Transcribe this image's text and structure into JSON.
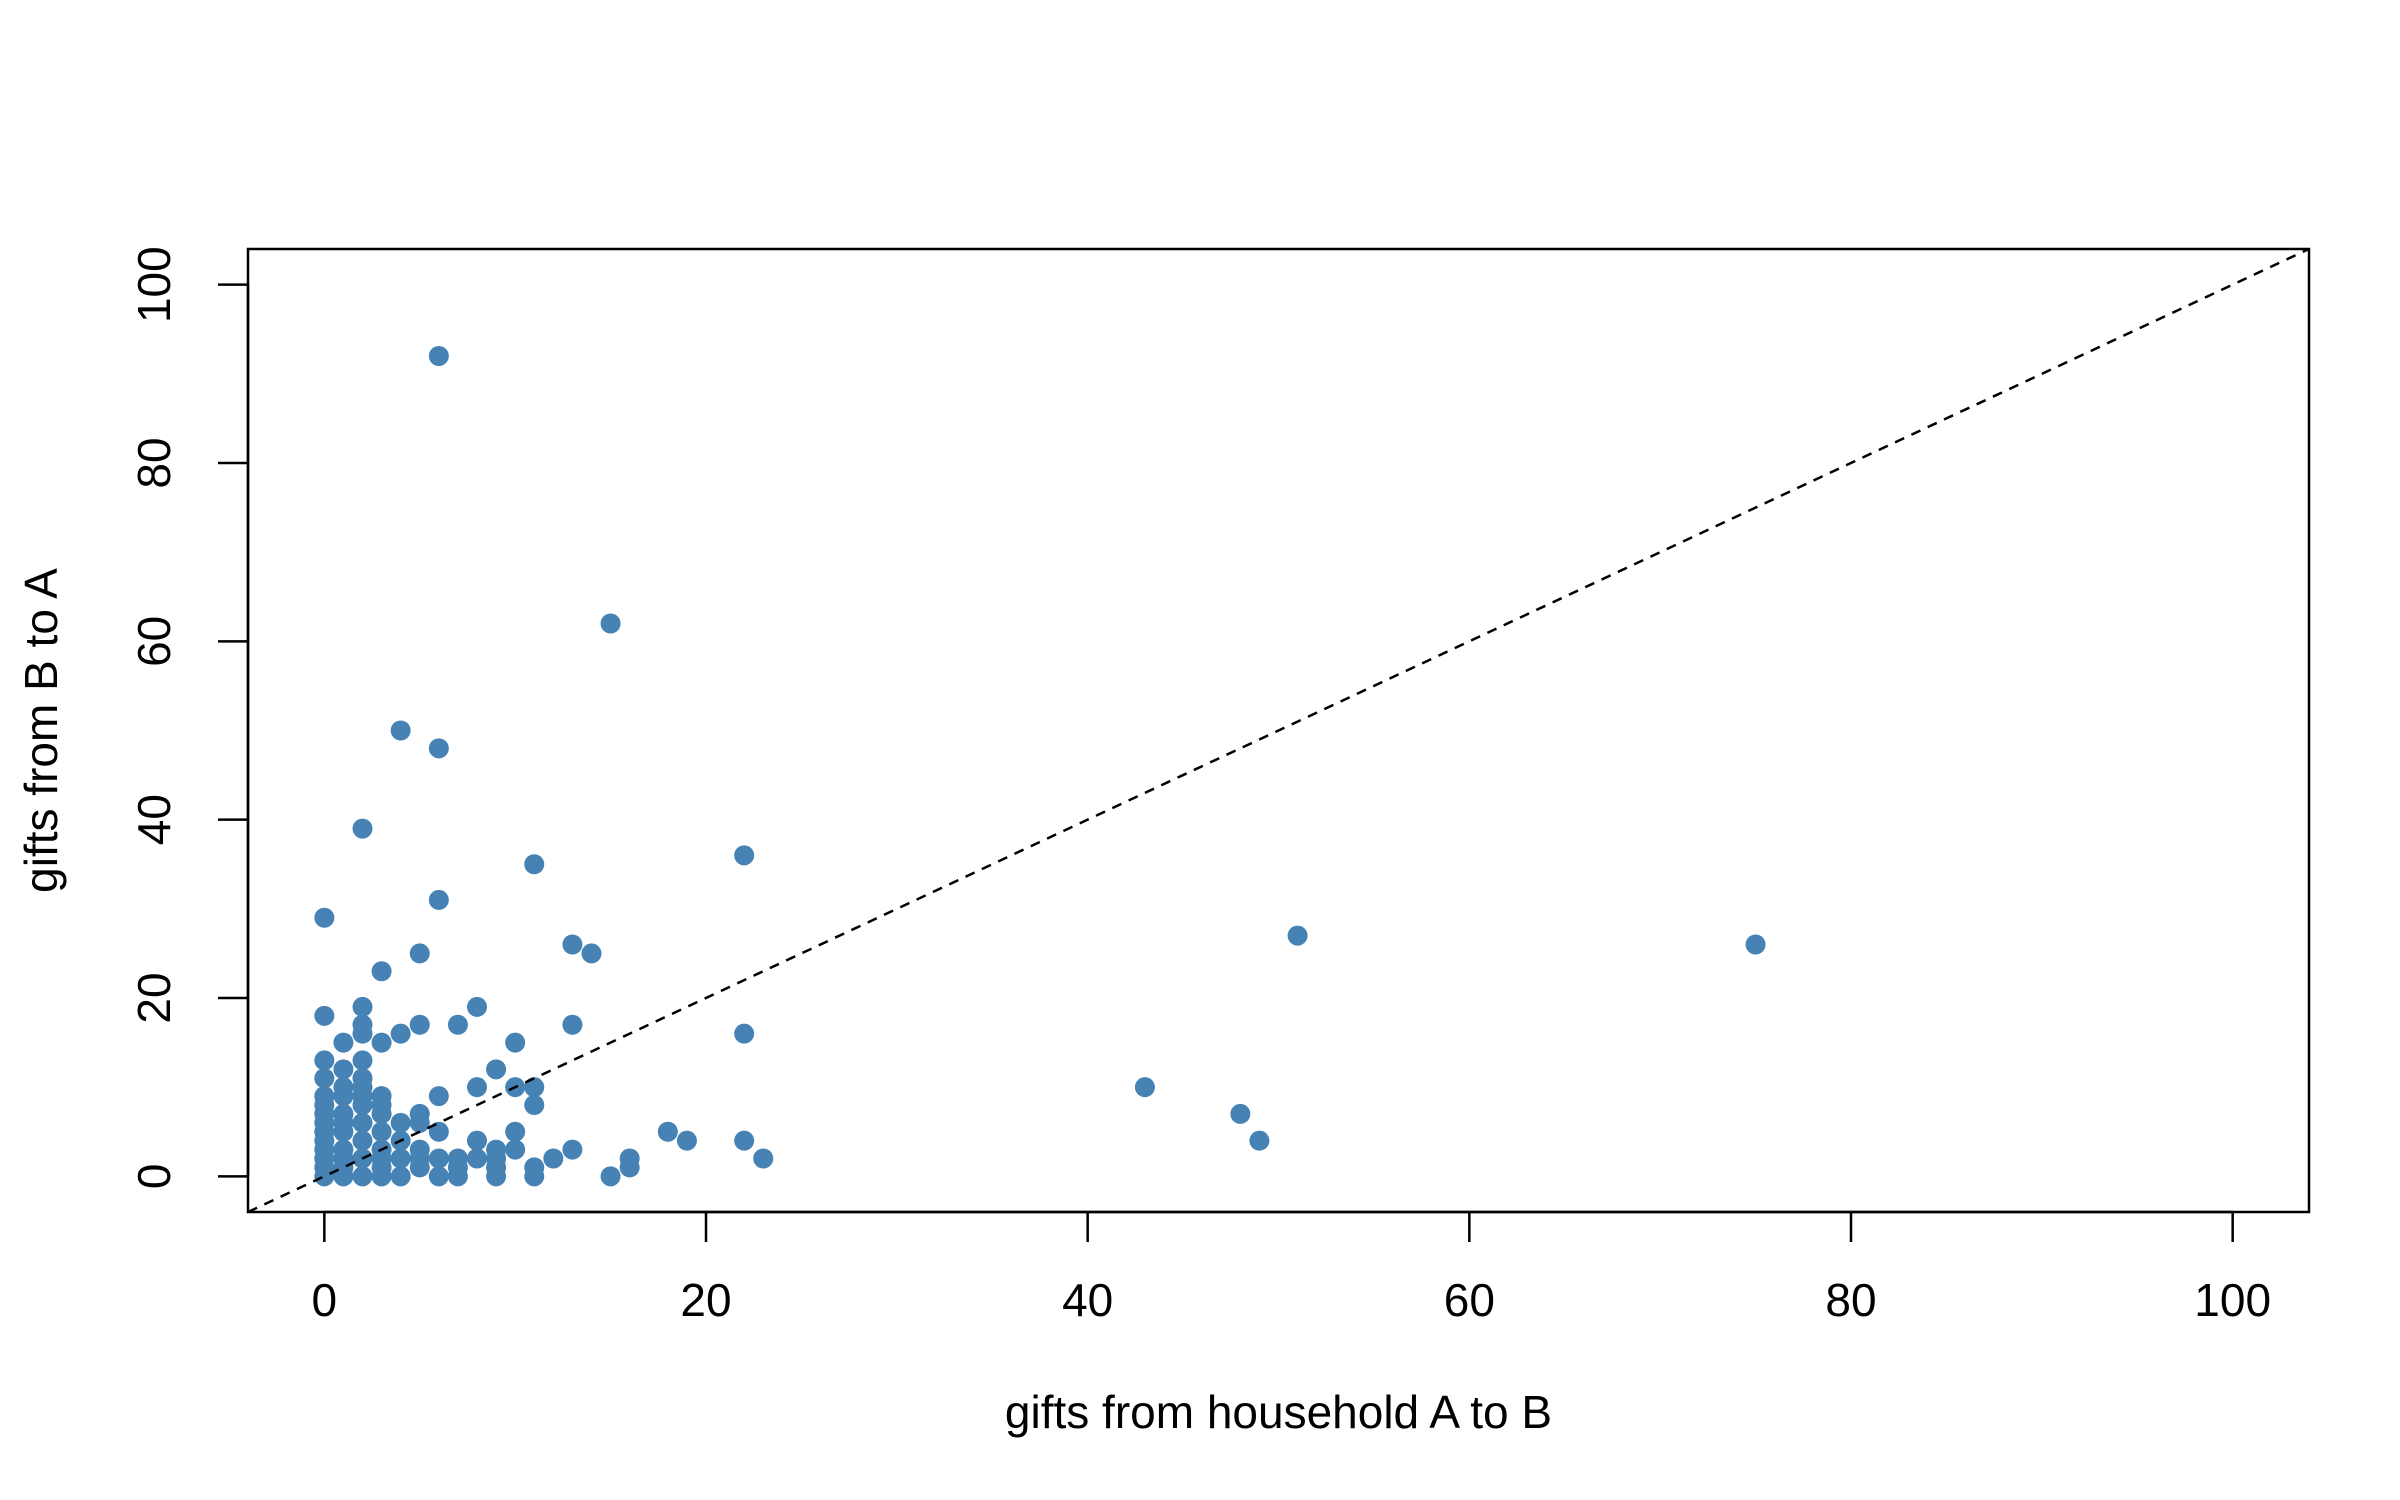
{
  "chart_data": {
    "type": "scatter",
    "title": "",
    "xlabel": "gifts from household A to B",
    "ylabel": "gifts from B to A",
    "xlim": [
      -4,
      104
    ],
    "ylim": [
      -4,
      104
    ],
    "xticks": [
      0,
      20,
      40,
      60,
      80,
      100
    ],
    "yticks": [
      0,
      20,
      40,
      60,
      80,
      100
    ],
    "xtick_labels": [
      "0",
      "20",
      "40",
      "60",
      "80",
      "100"
    ],
    "ytick_labels": [
      "0",
      "20",
      "40",
      "60",
      "80",
      "100"
    ],
    "grid": false,
    "point_color": "#4682b4",
    "reference_line": {
      "style": "dashed",
      "slope": 1,
      "intercept": 0,
      "color": "#000000"
    },
    "points": [
      {
        "x": 6,
        "y": 92
      },
      {
        "x": 15,
        "y": 62
      },
      {
        "x": 4,
        "y": 50
      },
      {
        "x": 6,
        "y": 48
      },
      {
        "x": 2,
        "y": 39
      },
      {
        "x": 11,
        "y": 35
      },
      {
        "x": 22,
        "y": 36
      },
      {
        "x": 6,
        "y": 31
      },
      {
        "x": 0,
        "y": 29
      },
      {
        "x": 5,
        "y": 25
      },
      {
        "x": 13,
        "y": 26
      },
      {
        "x": 14,
        "y": 25
      },
      {
        "x": 3,
        "y": 23
      },
      {
        "x": 51,
        "y": 27
      },
      {
        "x": 75,
        "y": 26
      },
      {
        "x": 0,
        "y": 18
      },
      {
        "x": 2,
        "y": 19
      },
      {
        "x": 2,
        "y": 17
      },
      {
        "x": 2,
        "y": 16
      },
      {
        "x": 4,
        "y": 16
      },
      {
        "x": 5,
        "y": 17
      },
      {
        "x": 7,
        "y": 17
      },
      {
        "x": 8,
        "y": 19
      },
      {
        "x": 13,
        "y": 17
      },
      {
        "x": 22,
        "y": 16
      },
      {
        "x": 1,
        "y": 15
      },
      {
        "x": 3,
        "y": 15
      },
      {
        "x": 10,
        "y": 15
      },
      {
        "x": 0,
        "y": 13
      },
      {
        "x": 1,
        "y": 12
      },
      {
        "x": 2,
        "y": 13
      },
      {
        "x": 2,
        "y": 11
      },
      {
        "x": 9,
        "y": 12
      },
      {
        "x": 0,
        "y": 11
      },
      {
        "x": 1,
        "y": 10
      },
      {
        "x": 2,
        "y": 10
      },
      {
        "x": 8,
        "y": 10
      },
      {
        "x": 10,
        "y": 10
      },
      {
        "x": 11,
        "y": 10
      },
      {
        "x": 43,
        "y": 10
      },
      {
        "x": 0,
        "y": 9
      },
      {
        "x": 1,
        "y": 9
      },
      {
        "x": 2,
        "y": 9
      },
      {
        "x": 3,
        "y": 9
      },
      {
        "x": 6,
        "y": 9
      },
      {
        "x": 0,
        "y": 8
      },
      {
        "x": 2,
        "y": 8
      },
      {
        "x": 3,
        "y": 8
      },
      {
        "x": 11,
        "y": 8
      },
      {
        "x": 0,
        "y": 7
      },
      {
        "x": 1,
        "y": 7
      },
      {
        "x": 3,
        "y": 7
      },
      {
        "x": 5,
        "y": 7
      },
      {
        "x": 48,
        "y": 7
      },
      {
        "x": 0,
        "y": 6
      },
      {
        "x": 1,
        "y": 6
      },
      {
        "x": 2,
        "y": 6
      },
      {
        "x": 4,
        "y": 6
      },
      {
        "x": 5,
        "y": 6
      },
      {
        "x": 0,
        "y": 5
      },
      {
        "x": 1,
        "y": 5
      },
      {
        "x": 3,
        "y": 5
      },
      {
        "x": 6,
        "y": 5
      },
      {
        "x": 10,
        "y": 5
      },
      {
        "x": 18,
        "y": 5
      },
      {
        "x": 0,
        "y": 4
      },
      {
        "x": 2,
        "y": 4
      },
      {
        "x": 4,
        "y": 4
      },
      {
        "x": 8,
        "y": 4
      },
      {
        "x": 19,
        "y": 4
      },
      {
        "x": 22,
        "y": 4
      },
      {
        "x": 49,
        "y": 4
      },
      {
        "x": 0,
        "y": 3
      },
      {
        "x": 1,
        "y": 3
      },
      {
        "x": 3,
        "y": 3
      },
      {
        "x": 5,
        "y": 3
      },
      {
        "x": 9,
        "y": 3
      },
      {
        "x": 10,
        "y": 3
      },
      {
        "x": 13,
        "y": 3
      },
      {
        "x": 0,
        "y": 2
      },
      {
        "x": 1,
        "y": 2
      },
      {
        "x": 2,
        "y": 2
      },
      {
        "x": 3,
        "y": 2
      },
      {
        "x": 4,
        "y": 2
      },
      {
        "x": 5,
        "y": 2
      },
      {
        "x": 6,
        "y": 2
      },
      {
        "x": 7,
        "y": 2
      },
      {
        "x": 8,
        "y": 2
      },
      {
        "x": 9,
        "y": 2
      },
      {
        "x": 12,
        "y": 2
      },
      {
        "x": 16,
        "y": 2
      },
      {
        "x": 23,
        "y": 2
      },
      {
        "x": 0,
        "y": 1
      },
      {
        "x": 1,
        "y": 1
      },
      {
        "x": 3,
        "y": 1
      },
      {
        "x": 5,
        "y": 1
      },
      {
        "x": 7,
        "y": 1
      },
      {
        "x": 9,
        "y": 1
      },
      {
        "x": 11,
        "y": 1
      },
      {
        "x": 16,
        "y": 1
      },
      {
        "x": 0,
        "y": 0
      },
      {
        "x": 1,
        "y": 0
      },
      {
        "x": 2,
        "y": 0
      },
      {
        "x": 3,
        "y": 0
      },
      {
        "x": 4,
        "y": 0
      },
      {
        "x": 6,
        "y": 0
      },
      {
        "x": 7,
        "y": 0
      },
      {
        "x": 9,
        "y": 0
      },
      {
        "x": 11,
        "y": 0
      },
      {
        "x": 15,
        "y": 0
      }
    ]
  }
}
